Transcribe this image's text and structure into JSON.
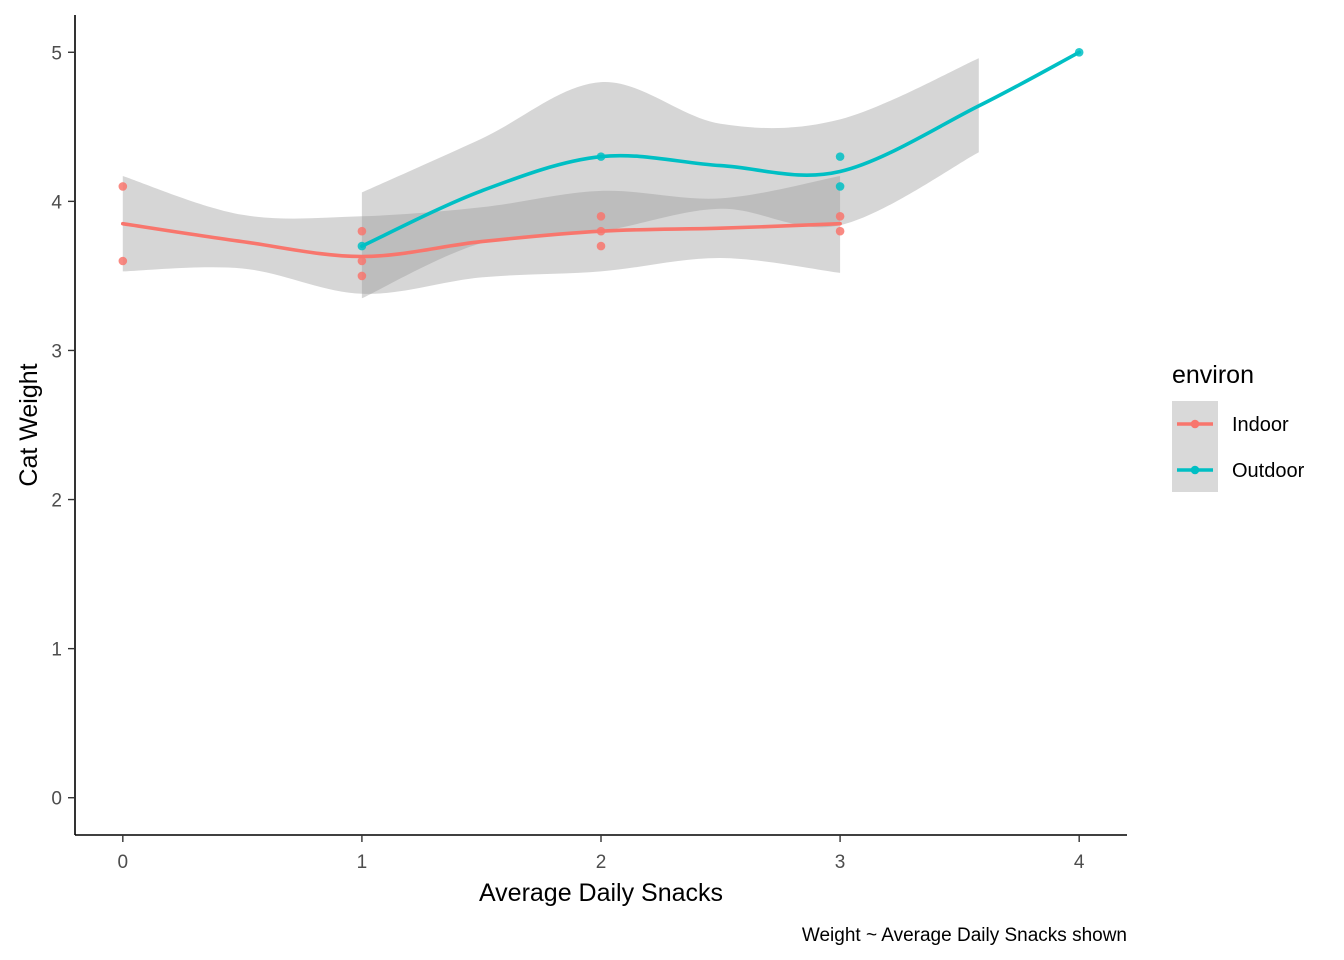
{
  "chart_data": {
    "type": "scatter",
    "title": "",
    "xlabel": "Average Daily Snacks",
    "ylabel": "Cat Weight",
    "caption": "Weight ~ Average Daily Snacks shown",
    "xlim": [
      -0.2,
      4.2
    ],
    "ylim": [
      -0.25,
      5.25
    ],
    "xticks": [
      0,
      1,
      2,
      3,
      4
    ],
    "yticks": [
      0,
      1,
      2,
      3,
      4,
      5
    ],
    "xtick_labels": [
      "0",
      "1",
      "2",
      "3",
      "4"
    ],
    "ytick_labels": [
      "0",
      "1",
      "2",
      "3",
      "4",
      "5"
    ],
    "grid": false,
    "legend": {
      "title": "environ",
      "position": "right"
    },
    "series": [
      {
        "name": "Indoor",
        "color": "#F8766D",
        "points": [
          {
            "x": 0,
            "y": 4.1
          },
          {
            "x": 0,
            "y": 3.6
          },
          {
            "x": 1,
            "y": 3.8
          },
          {
            "x": 1,
            "y": 3.6
          },
          {
            "x": 1,
            "y": 3.5
          },
          {
            "x": 2,
            "y": 3.9
          },
          {
            "x": 2,
            "y": 3.8
          },
          {
            "x": 2,
            "y": 3.7
          },
          {
            "x": 3,
            "y": 3.9
          },
          {
            "x": 3,
            "y": 3.8
          }
        ],
        "smooth": [
          {
            "x": 0,
            "y": 3.85,
            "lo": 3.53,
            "hi": 4.17
          },
          {
            "x": 0.5,
            "y": 3.73,
            "lo": 3.55,
            "hi": 3.91
          },
          {
            "x": 1,
            "y": 3.63,
            "lo": 3.38,
            "hi": 3.9
          },
          {
            "x": 1.5,
            "y": 3.73,
            "lo": 3.49,
            "hi": 3.96
          },
          {
            "x": 2,
            "y": 3.8,
            "lo": 3.53,
            "hi": 4.07
          },
          {
            "x": 2.5,
            "y": 3.82,
            "lo": 3.62,
            "hi": 4.02
          },
          {
            "x": 3,
            "y": 3.85,
            "lo": 3.52,
            "hi": 4.17
          }
        ]
      },
      {
        "name": "Outdoor",
        "color": "#00BFC4",
        "points": [
          {
            "x": 1,
            "y": 3.7
          },
          {
            "x": 2,
            "y": 4.3
          },
          {
            "x": 3,
            "y": 4.3
          },
          {
            "x": 3,
            "y": 4.1
          },
          {
            "x": 4,
            "y": 5.0
          }
        ],
        "smooth": [
          {
            "x": 1,
            "y": 3.7,
            "lo": 3.35,
            "hi": 4.06
          },
          {
            "x": 1.5,
            "y": 4.07,
            "lo": 3.72,
            "hi": 4.42
          },
          {
            "x": 2,
            "y": 4.3,
            "lo": 3.8,
            "hi": 4.8
          },
          {
            "x": 2.5,
            "y": 4.24,
            "lo": 3.95,
            "hi": 4.52
          },
          {
            "x": 3,
            "y": 4.2,
            "lo": 3.84,
            "hi": 4.55
          },
          {
            "x": 3.58,
            "y": 4.64,
            "lo": 4.33,
            "hi": 4.96
          },
          {
            "x": 4,
            "y": 5.0,
            "lo": null,
            "hi": null
          }
        ]
      }
    ]
  }
}
